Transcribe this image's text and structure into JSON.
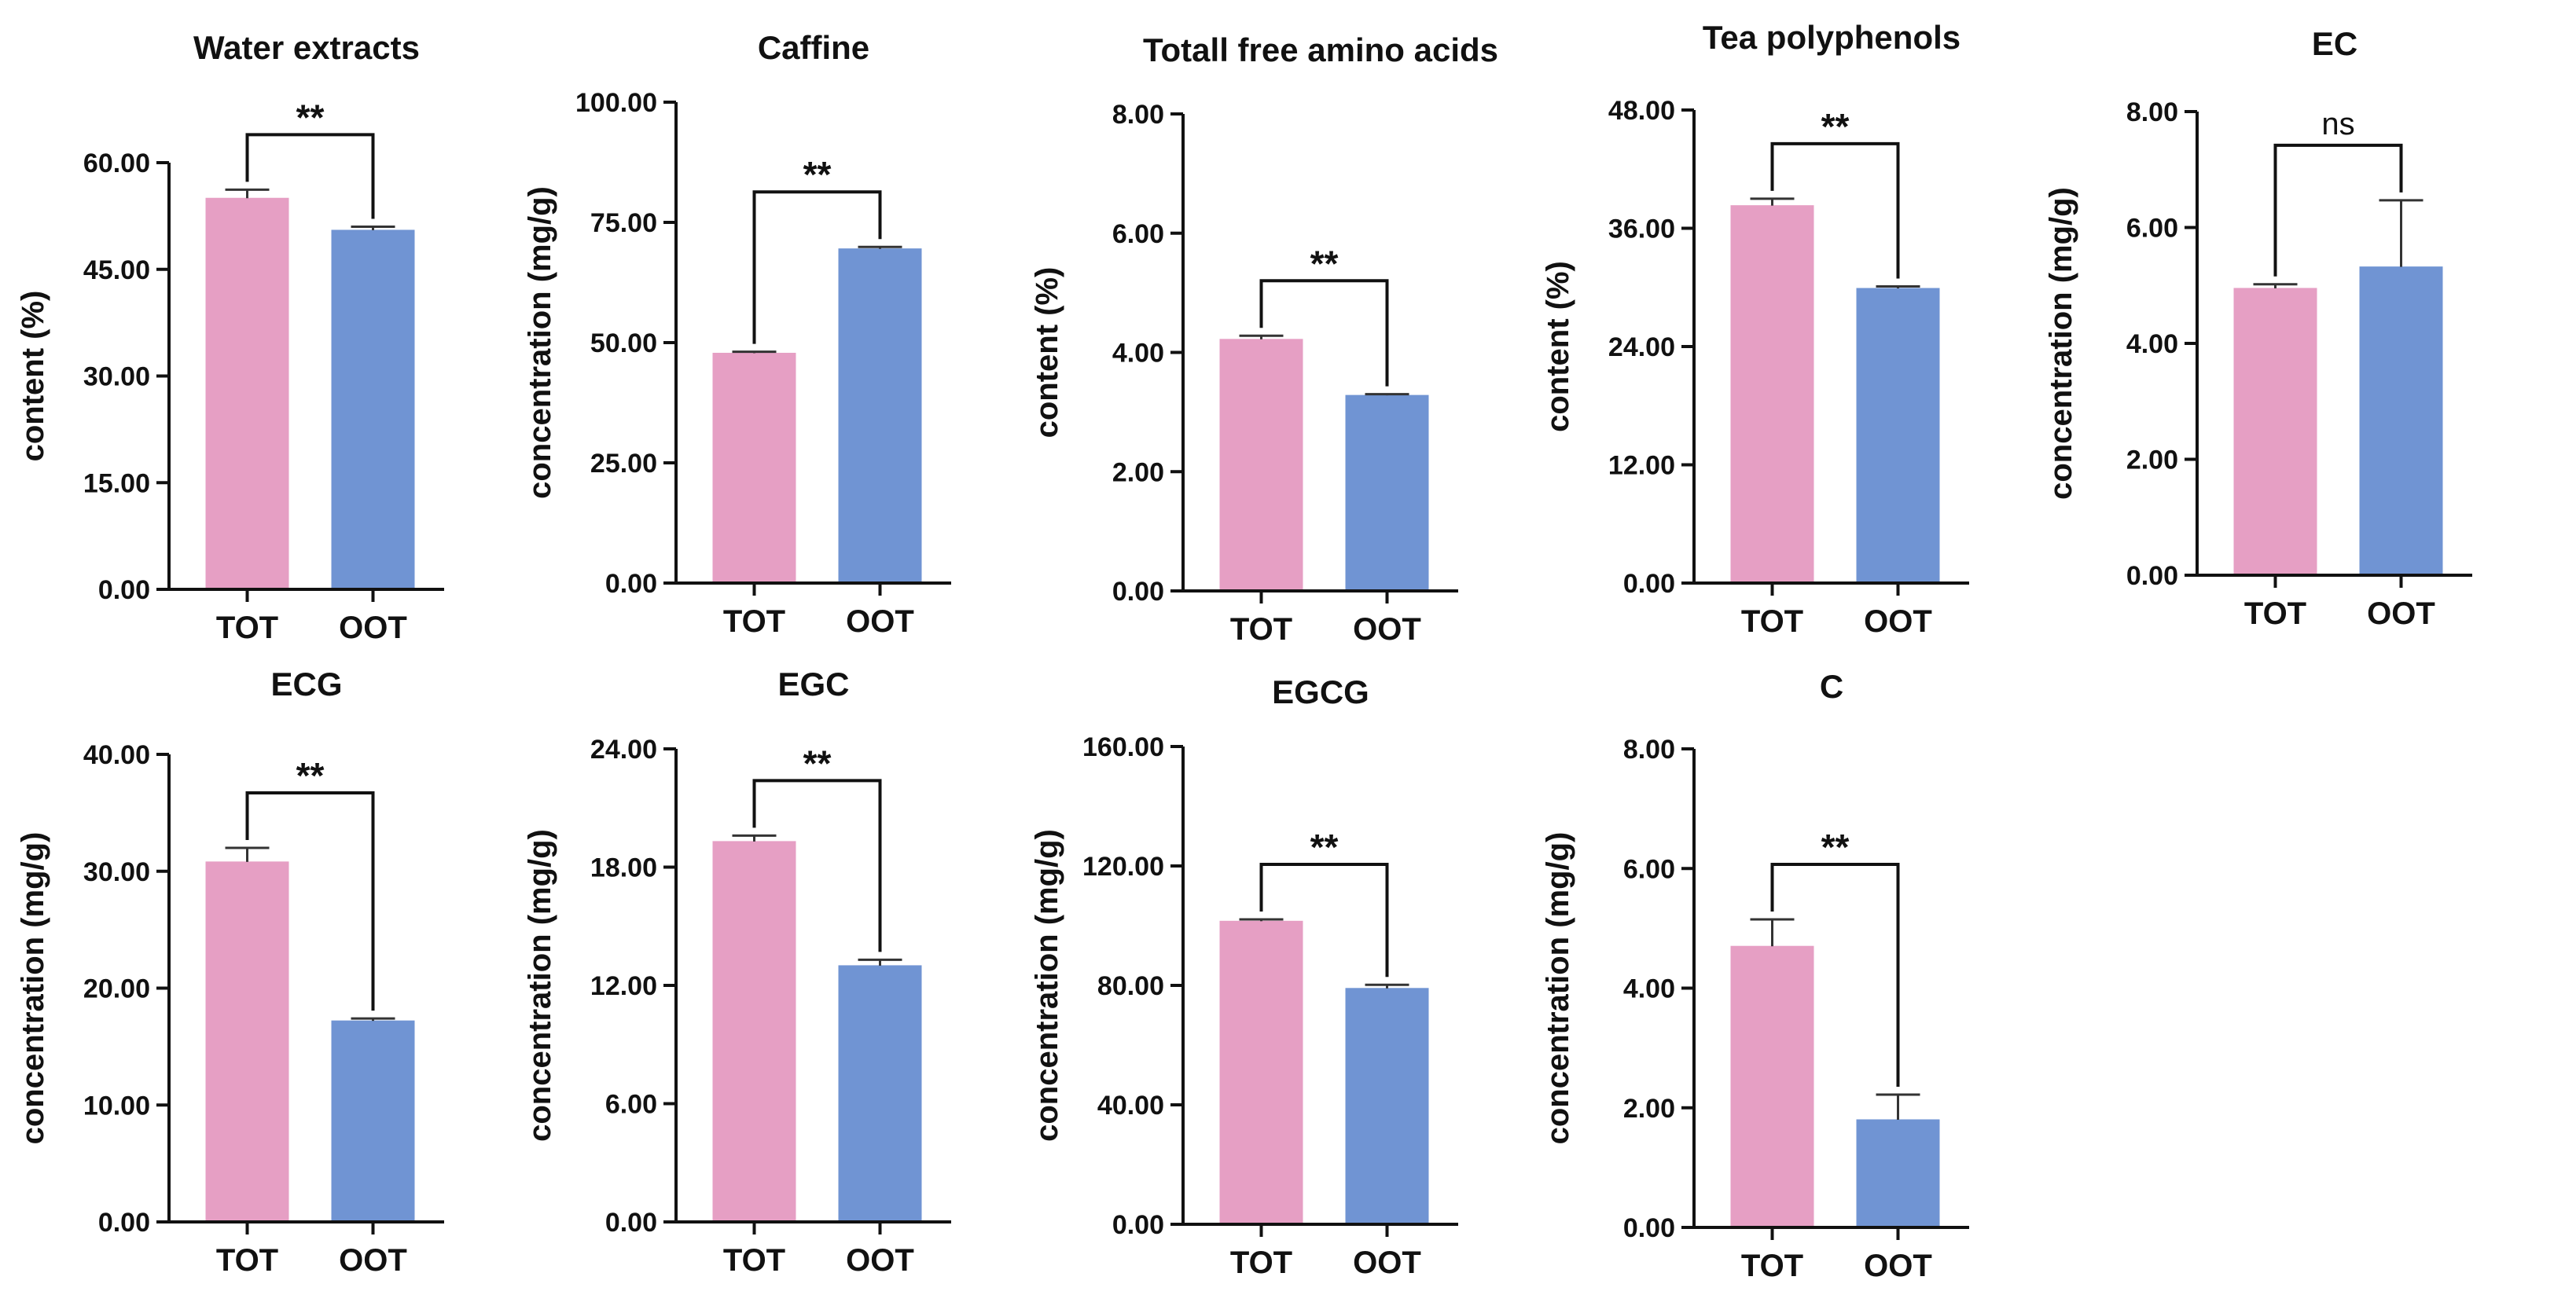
{
  "chart_data": [
    {
      "type": "bar",
      "title": "Water extracts",
      "ylabel": "content (%)",
      "categories": [
        "TOT",
        "OOT"
      ],
      "values": [
        55.0,
        50.5
      ],
      "errors": [
        1.2,
        0.5
      ],
      "ylim": [
        0,
        60
      ],
      "yticks": [
        "0.00",
        "15.00",
        "30.00",
        "45.00",
        "60.00"
      ],
      "significance": "**",
      "colors": [
        "#e69fc4",
        "#7094d3"
      ]
    },
    {
      "type": "bar",
      "title": "Caffine",
      "ylabel": "concentration (mg/g)",
      "categories": [
        "TOT",
        "OOT"
      ],
      "values": [
        47.8,
        69.5
      ],
      "errors": [
        0.3,
        0.4
      ],
      "ylim": [
        0,
        100
      ],
      "yticks": [
        "0.00",
        "25.00",
        "50.00",
        "75.00",
        "100.00"
      ],
      "significance": "**",
      "colors": [
        "#e69fc4",
        "#7094d3"
      ]
    },
    {
      "type": "bar",
      "title": "Totall free amino acids",
      "ylabel": "content (%)",
      "categories": [
        "TOT",
        "OOT"
      ],
      "values": [
        4.22,
        3.28
      ],
      "errors": [
        0.06,
        0.02
      ],
      "ylim": [
        0,
        8
      ],
      "yticks": [
        "0.00",
        "2.00",
        "4.00",
        "6.00",
        "8.00"
      ],
      "significance": "**",
      "colors": [
        "#e69fc4",
        "#7094d3"
      ]
    },
    {
      "type": "bar",
      "title": "Tea polyphenols",
      "ylabel": "content (%)",
      "categories": [
        "TOT",
        "OOT"
      ],
      "values": [
        38.3,
        29.9
      ],
      "errors": [
        0.7,
        0.2
      ],
      "ylim": [
        0,
        48
      ],
      "yticks": [
        "0.00",
        "12.00",
        "24.00",
        "36.00",
        "48.00"
      ],
      "significance": "**",
      "colors": [
        "#e69fc4",
        "#7094d3"
      ]
    },
    {
      "type": "bar",
      "title": "EC",
      "ylabel": "concentration (mg/g)",
      "categories": [
        "TOT",
        "OOT"
      ],
      "values": [
        4.95,
        5.32
      ],
      "errors": [
        0.07,
        1.15
      ],
      "ylim": [
        0,
        8
      ],
      "yticks": [
        "0.00",
        "2.00",
        "4.00",
        "6.00",
        "8.00"
      ],
      "significance": "ns",
      "colors": [
        "#e69fc4",
        "#7094d3"
      ]
    },
    {
      "type": "bar",
      "title": "ECG",
      "ylabel": "concentration (mg/g)",
      "categories": [
        "TOT",
        "OOT"
      ],
      "values": [
        30.8,
        17.2
      ],
      "errors": [
        1.2,
        0.2
      ],
      "ylim": [
        0,
        40
      ],
      "yticks": [
        "0.00",
        "10.00",
        "20.00",
        "30.00",
        "40.00"
      ],
      "significance": "**",
      "colors": [
        "#e69fc4",
        "#7094d3"
      ]
    },
    {
      "type": "bar",
      "title": "EGC",
      "ylabel": "concentration (mg/g)",
      "categories": [
        "TOT",
        "OOT"
      ],
      "values": [
        19.3,
        13.0
      ],
      "errors": [
        0.3,
        0.3
      ],
      "ylim": [
        0,
        24
      ],
      "yticks": [
        "0.00",
        "6.00",
        "12.00",
        "18.00",
        "24.00"
      ],
      "significance": "**",
      "colors": [
        "#e69fc4",
        "#7094d3"
      ]
    },
    {
      "type": "bar",
      "title": "EGCG",
      "ylabel": "concentration (mg/g)",
      "categories": [
        "TOT",
        "OOT"
      ],
      "values": [
        101.5,
        79.0
      ],
      "errors": [
        0.6,
        1.2
      ],
      "ylim": [
        0,
        160
      ],
      "yticks": [
        "0.00",
        "40.00",
        "80.00",
        "120.00",
        "160.00"
      ],
      "significance": "**",
      "colors": [
        "#e69fc4",
        "#7094d3"
      ]
    },
    {
      "type": "bar",
      "title": "C",
      "ylabel": "concentration (mg/g)",
      "categories": [
        "TOT",
        "OOT"
      ],
      "values": [
        4.7,
        1.8
      ],
      "errors": [
        0.45,
        0.42
      ],
      "ylim": [
        0,
        8
      ],
      "yticks": [
        "0.00",
        "2.00",
        "4.00",
        "6.00",
        "8.00"
      ],
      "significance": "**",
      "colors": [
        "#e69fc4",
        "#7094d3"
      ]
    }
  ]
}
